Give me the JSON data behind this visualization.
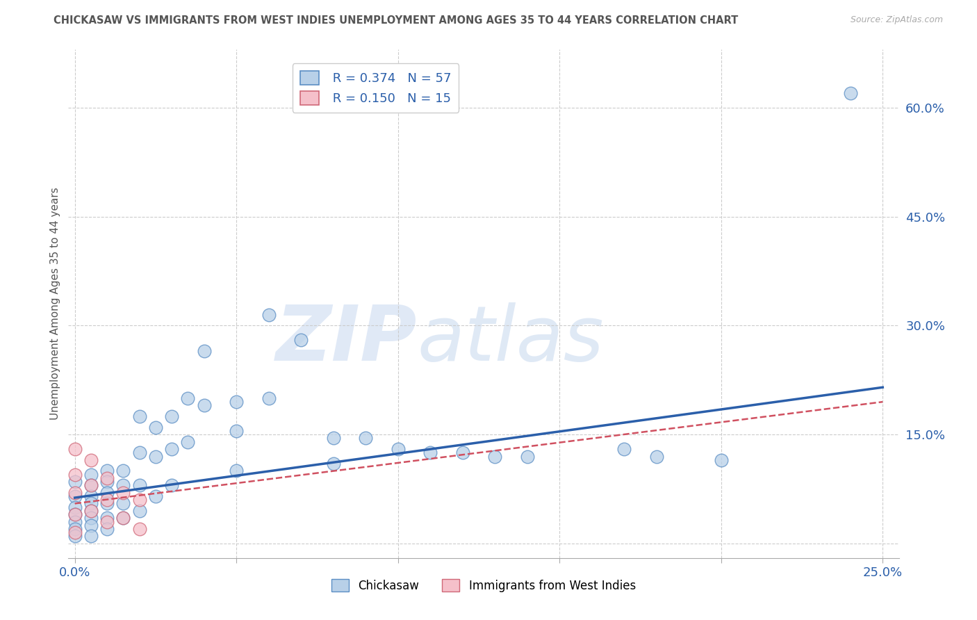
{
  "title": "CHICKASAW VS IMMIGRANTS FROM WEST INDIES UNEMPLOYMENT AMONG AGES 35 TO 44 YEARS CORRELATION CHART",
  "source": "Source: ZipAtlas.com",
  "ylabel": "Unemployment Among Ages 35 to 44 years",
  "xlim": [
    -0.002,
    0.255
  ],
  "ylim": [
    -0.02,
    0.68
  ],
  "yticks": [
    0.0,
    0.15,
    0.3,
    0.45,
    0.6
  ],
  "ytick_labels": [
    "",
    "15.0%",
    "30.0%",
    "45.0%",
    "60.0%"
  ],
  "xticks": [
    0.0,
    0.05,
    0.1,
    0.15,
    0.2,
    0.25
  ],
  "xtick_labels": [
    "0.0%",
    "",
    "",
    "",
    "",
    "25.0%"
  ],
  "legend_blue_R": "R = 0.374",
  "legend_blue_N": "N = 57",
  "legend_pink_R": "R = 0.150",
  "legend_pink_N": "N = 15",
  "watermark_zip": "ZIP",
  "watermark_atlas": "atlas",
  "blue_color": "#b8d0e8",
  "blue_edge_color": "#5b8ec4",
  "blue_line_color": "#2b5faa",
  "pink_color": "#f5c0ca",
  "pink_edge_color": "#d06878",
  "pink_line_color": "#d05060",
  "blue_scatter_x": [
    0.0,
    0.0,
    0.0,
    0.0,
    0.0,
    0.0,
    0.0,
    0.005,
    0.005,
    0.005,
    0.005,
    0.005,
    0.005,
    0.005,
    0.005,
    0.01,
    0.01,
    0.01,
    0.01,
    0.01,
    0.01,
    0.015,
    0.015,
    0.015,
    0.015,
    0.02,
    0.02,
    0.02,
    0.02,
    0.025,
    0.025,
    0.025,
    0.03,
    0.03,
    0.03,
    0.035,
    0.035,
    0.04,
    0.04,
    0.05,
    0.05,
    0.05,
    0.06,
    0.06,
    0.07,
    0.08,
    0.08,
    0.09,
    0.1,
    0.11,
    0.12,
    0.13,
    0.14,
    0.17,
    0.18,
    0.2,
    0.24
  ],
  "blue_scatter_y": [
    0.085,
    0.065,
    0.05,
    0.04,
    0.03,
    0.02,
    0.01,
    0.095,
    0.08,
    0.065,
    0.055,
    0.045,
    0.035,
    0.025,
    0.01,
    0.1,
    0.085,
    0.07,
    0.055,
    0.035,
    0.02,
    0.1,
    0.08,
    0.055,
    0.035,
    0.175,
    0.125,
    0.08,
    0.045,
    0.16,
    0.12,
    0.065,
    0.175,
    0.13,
    0.08,
    0.2,
    0.14,
    0.265,
    0.19,
    0.195,
    0.155,
    0.1,
    0.315,
    0.2,
    0.28,
    0.145,
    0.11,
    0.145,
    0.13,
    0.125,
    0.125,
    0.12,
    0.12,
    0.13,
    0.12,
    0.115,
    0.62
  ],
  "pink_scatter_x": [
    0.0,
    0.0,
    0.0,
    0.0,
    0.0,
    0.005,
    0.005,
    0.005,
    0.01,
    0.01,
    0.01,
    0.015,
    0.015,
    0.02,
    0.02
  ],
  "pink_scatter_y": [
    0.13,
    0.095,
    0.07,
    0.04,
    0.015,
    0.115,
    0.08,
    0.045,
    0.09,
    0.06,
    0.03,
    0.07,
    0.035,
    0.06,
    0.02
  ],
  "blue_line_x0": 0.0,
  "blue_line_y0": 0.063,
  "blue_line_x1": 0.25,
  "blue_line_y1": 0.215,
  "pink_line_x0": 0.0,
  "pink_line_y0": 0.055,
  "pink_line_x1": 0.25,
  "pink_line_y1": 0.195,
  "background_color": "#ffffff",
  "grid_color": "#cccccc",
  "title_color": "#555555",
  "axis_color": "#aaaaaa"
}
